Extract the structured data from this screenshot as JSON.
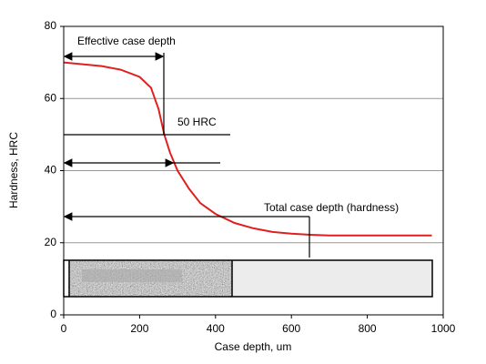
{
  "chart_data": {
    "type": "line",
    "x_label": "Case depth, um",
    "y_label": "Hardness, HRC",
    "x": [
      0,
      50,
      100,
      150,
      200,
      230,
      250,
      265,
      280,
      300,
      330,
      360,
      400,
      450,
      500,
      550,
      600,
      650,
      700,
      800,
      900,
      970
    ],
    "series": [
      {
        "name": "Hardness",
        "color": "#e02020",
        "values": [
          70,
          69.5,
          69,
          68,
          66,
          63,
          57,
          50,
          45,
          40,
          35,
          31,
          28,
          25.5,
          24,
          23,
          22.5,
          22.2,
          22,
          22,
          22,
          22
        ]
      }
    ],
    "xlim": [
      0,
      1000
    ],
    "xticks": [
      0,
      200,
      400,
      600,
      800,
      1000
    ],
    "ylim": [
      0,
      80
    ],
    "yticks": [
      0,
      20,
      40,
      60,
      80
    ],
    "grid": true,
    "annotations": [
      "Effective case depth",
      "50 HRC",
      "Total case depth (hardness)"
    ]
  }
}
